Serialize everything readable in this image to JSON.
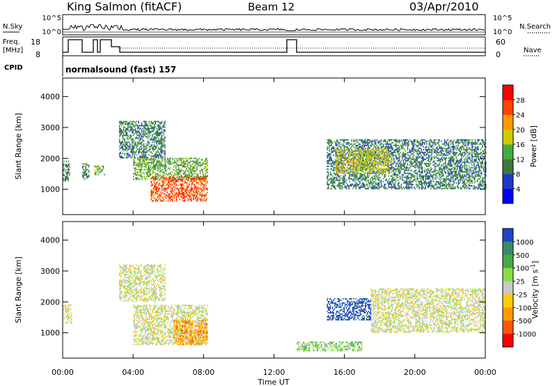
{
  "header": {
    "station": "King Salmon (fitACF)",
    "beam": "Beam 12",
    "date": "03/Apr/2010"
  },
  "params": {
    "nsky_label": "N.Sky",
    "nsearch_label": "N.Search",
    "freq_label_1": "Freq.",
    "freq_label_2": "[MHz]",
    "nave_label": "Nave",
    "cpid_label": "CPID",
    "noise_ticks_left": [
      "10^5",
      "10^0"
    ],
    "noise_ticks_right": [
      "10^5",
      "10^0"
    ],
    "freq_ticks": [
      "18",
      "8"
    ],
    "nave_ticks": [
      "60",
      "0"
    ],
    "cpid_text": "normalsound (fast) 157"
  },
  "chart_data": [
    {
      "type": "heatmap",
      "title": "",
      "xlabel": "",
      "ylabel": "Slant Range [km]",
      "x_ticks": [
        "00:00",
        "04:00",
        "08:00",
        "12:00",
        "16:00",
        "20:00",
        "00:00"
      ],
      "y_ticks": [
        "1000",
        "2000",
        "3000",
        "4000"
      ],
      "xlim_hours": [
        0,
        24
      ],
      "ylim_km": [
        180,
        4600
      ],
      "colorbar": {
        "label": "Power [dB]",
        "ticks": [
          "4",
          "8",
          "12",
          "16",
          "20",
          "24",
          "28"
        ],
        "colors": [
          "#0000ff",
          "#2038c8",
          "#3c7a3c",
          "#44aa44",
          "#cccc00",
          "#ff9900",
          "#ff4400",
          "#ff0000"
        ]
      },
      "echo_regions": [
        {
          "name": "early near-range band",
          "t": [
            0.0,
            0.4
          ],
          "r": [
            1250,
            1900
          ],
          "level": 2
        },
        {
          "name": "early patch 2",
          "t": [
            1.1,
            1.5
          ],
          "r": [
            1300,
            1800
          ],
          "level": 2
        },
        {
          "name": "early patch 3",
          "t": [
            1.8,
            2.4
          ],
          "r": [
            1450,
            1750
          ],
          "level": 3
        },
        {
          "name": "upper arc",
          "t": [
            3.2,
            5.8
          ],
          "r": [
            2000,
            3200
          ],
          "level": 2
        },
        {
          "name": "middle arc",
          "t": [
            4.0,
            8.2
          ],
          "r": [
            1300,
            2000
          ],
          "level": 3
        },
        {
          "name": "strong near-range arc",
          "t": [
            5.0,
            8.2
          ],
          "r": [
            600,
            1400
          ],
          "level": 6
        },
        {
          "name": "afternoon band",
          "t": [
            15.0,
            24.0
          ],
          "r": [
            1000,
            2600
          ],
          "level": 2
        },
        {
          "name": "afternoon core",
          "t": [
            15.5,
            18.5
          ],
          "r": [
            1500,
            2300
          ],
          "level": 4
        }
      ]
    },
    {
      "type": "heatmap",
      "title": "",
      "xlabel": "Time UT",
      "ylabel": "Slant Range [km]",
      "x_ticks": [
        "00:00",
        "04:00",
        "08:00",
        "12:00",
        "16:00",
        "20:00",
        "00:00"
      ],
      "y_ticks": [
        "1000",
        "2000",
        "3000",
        "4000"
      ],
      "xlim_hours": [
        0,
        24
      ],
      "ylim_km": [
        180,
        4600
      ],
      "colorbar": {
        "label": "Velocity [m s^-1]",
        "ticks": [
          "1000",
          "500",
          "100",
          "25",
          "-25",
          "-100",
          "-500",
          "-1000"
        ],
        "colors": [
          "#2244cc",
          "#3a8a6a",
          "#44aa44",
          "#88dd44",
          "#c8c8c8",
          "#ffcc00",
          "#ff9900",
          "#ff5500",
          "#ff0000"
        ]
      },
      "echo_regions": [
        {
          "name": "early band",
          "t": [
            0.0,
            0.5
          ],
          "r": [
            1300,
            1900
          ],
          "level": 4
        },
        {
          "name": "upper arc",
          "t": [
            3.2,
            5.8
          ],
          "r": [
            2000,
            3200
          ],
          "level": 4
        },
        {
          "name": "ground scatter arc",
          "t": [
            4.0,
            8.2
          ],
          "r": [
            600,
            1900
          ],
          "level": 4
        },
        {
          "name": "negative velocity patch",
          "t": [
            6.3,
            8.2
          ],
          "r": [
            600,
            1400
          ],
          "level": 6
        },
        {
          "name": "afternoon positive",
          "t": [
            15.0,
            17.5
          ],
          "r": [
            1400,
            2100
          ],
          "level": 0
        },
        {
          "name": "afternoon near-range",
          "t": [
            13.3,
            17.0
          ],
          "r": [
            400,
            700
          ],
          "level": 3
        },
        {
          "name": "late band",
          "t": [
            17.5,
            24.0
          ],
          "r": [
            1000,
            2400
          ],
          "level": 4
        }
      ]
    }
  ]
}
